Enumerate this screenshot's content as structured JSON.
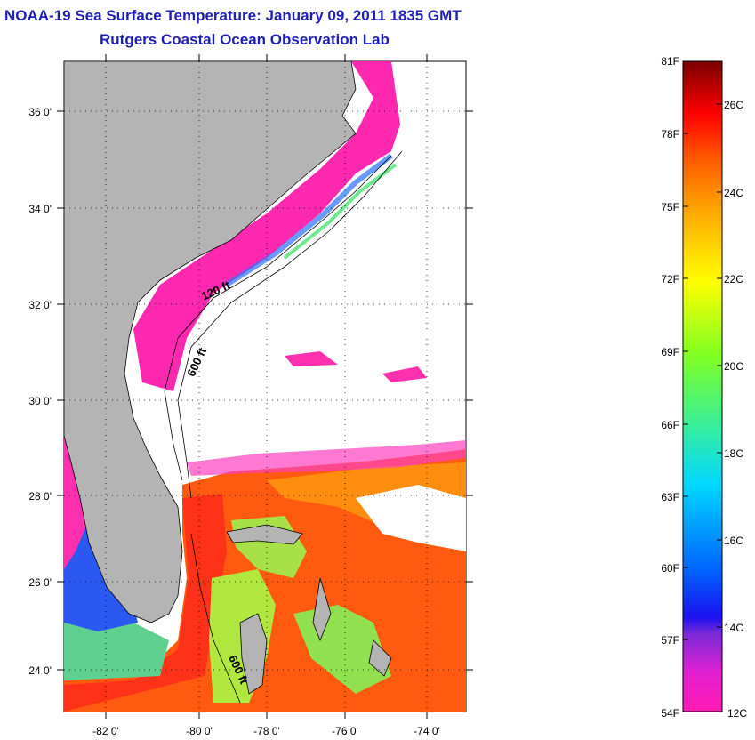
{
  "title": "NOAA-19 Sea Surface Temperature:  January 09, 2011 1835 GMT",
  "subtitle": "Rutgers Coastal Ocean Observation Lab",
  "map": {
    "lat_labels": [
      "36 0'",
      "34 0'",
      "32 0'",
      "30 0'",
      "28 0'",
      "26 0'",
      "24 0'"
    ],
    "lon_labels": [
      "-82 0'",
      "-80 0'",
      "-78 0'",
      "-76 0'",
      "-74 0'"
    ],
    "isobath_labels": [
      "120 ft",
      "600 ft",
      "600 ft"
    ],
    "colors": {
      "land": "#b4b4b4",
      "cloud": "#ffffff"
    }
  },
  "colorbar": {
    "f_labels": [
      "81F",
      "78F",
      "75F",
      "72F",
      "69F",
      "66F",
      "63F",
      "60F",
      "57F",
      "54F"
    ],
    "c_labels": [
      "26C",
      "24C",
      "22C",
      "20C",
      "18C",
      "16C",
      "14C",
      "12C"
    ]
  }
}
